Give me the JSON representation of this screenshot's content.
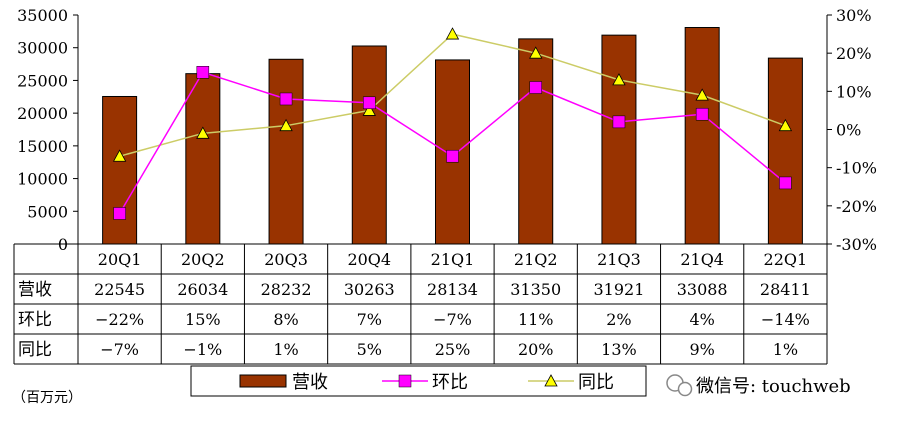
{
  "chart_data": {
    "type": "bar",
    "categories": [
      "20Q1",
      "20Q2",
      "20Q3",
      "20Q4",
      "21Q1",
      "21Q2",
      "21Q3",
      "21Q4",
      "22Q1"
    ],
    "series": [
      {
        "name": "营收",
        "type": "bar",
        "axis": "left",
        "color": "#993300",
        "values": [
          22545,
          26034,
          28232,
          30263,
          28134,
          31350,
          31921,
          33088,
          28411
        ]
      },
      {
        "name": "环比",
        "type": "line",
        "axis": "right",
        "color": "#ff00ff",
        "marker": "square",
        "values": [
          -22,
          15,
          8,
          7,
          -7,
          11,
          2,
          4,
          -14
        ]
      },
      {
        "name": "同比",
        "type": "line",
        "axis": "right",
        "color": "#cccc66",
        "marker": "triangle",
        "marker_color": "#ffff00",
        "values": [
          -7,
          -1,
          1,
          5,
          25,
          20,
          13,
          9,
          1
        ]
      }
    ],
    "ylim_left": [
      0,
      35000
    ],
    "left_ticks": [
      "0",
      "5000",
      "10000",
      "15000",
      "20000",
      "25000",
      "30000",
      "35000"
    ],
    "ylim_right": [
      -30,
      30
    ],
    "right_ticks": [
      "-30%",
      "-20%",
      "-10%",
      "0%",
      "10%",
      "20%",
      "30%"
    ],
    "grid": false,
    "legend_position": "bottom",
    "table": {
      "rows": [
        {
          "label": "营收",
          "cells": [
            "22545",
            "26034",
            "28232",
            "30263",
            "28134",
            "31350",
            "31921",
            "33088",
            "28411"
          ]
        },
        {
          "label": "环比",
          "cells": [
            "−22%",
            "15%",
            "8%",
            "7%",
            "−7%",
            "11%",
            "2%",
            "4%",
            "−14%"
          ]
        },
        {
          "label": "同比",
          "cells": [
            "−7%",
            "−1%",
            "1%",
            "5%",
            "25%",
            "20%",
            "13%",
            "9%",
            "1%"
          ]
        }
      ]
    },
    "unit_note": "（百万元）",
    "watermark": "微信号: touchweb"
  }
}
